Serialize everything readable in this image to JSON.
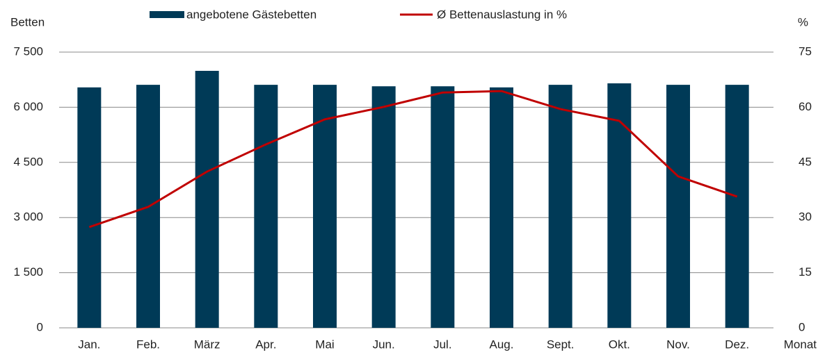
{
  "chart_data": {
    "type": "bar_line",
    "y_label": "Betten",
    "y2_label": "%",
    "x_label": "Monat",
    "categories": [
      "Jan.",
      "Feb.",
      "März",
      "Apr.",
      "Mai",
      "Jun.",
      "Jul.",
      "Aug.",
      "Sept.",
      "Okt.",
      "Nov.",
      "Dez."
    ],
    "series": [
      {
        "name": "angebotene Gästebetten",
        "type": "bar",
        "color": "#003a57",
        "axis": "y",
        "values": [
          6540,
          6610,
          6990,
          6610,
          6610,
          6570,
          6570,
          6540,
          6610,
          6650,
          6610,
          6610
        ]
      },
      {
        "name": "Ø Bettenauslastung in %",
        "type": "line",
        "color": "#c00000",
        "axis": "y2",
        "values": [
          27.4,
          32.9,
          42.5,
          49.9,
          56.7,
          60.1,
          64.0,
          64.4,
          59.5,
          56.3,
          41.2,
          35.7
        ]
      }
    ],
    "ylim": [
      0,
      7500
    ],
    "yticks": [
      0,
      {
        "value": 1500,
        "label": "1 500"
      },
      {
        "value": 3000,
        "label": "3 000"
      },
      {
        "value": 4500,
        "label": "4 500"
      },
      {
        "value": 6000,
        "label": "6 000"
      },
      {
        "value": 7500,
        "label": "7 500"
      }
    ],
    "y2lim": [
      0,
      75
    ],
    "y2ticks": [
      0,
      15,
      30,
      45,
      60,
      75
    ],
    "grid": true
  }
}
